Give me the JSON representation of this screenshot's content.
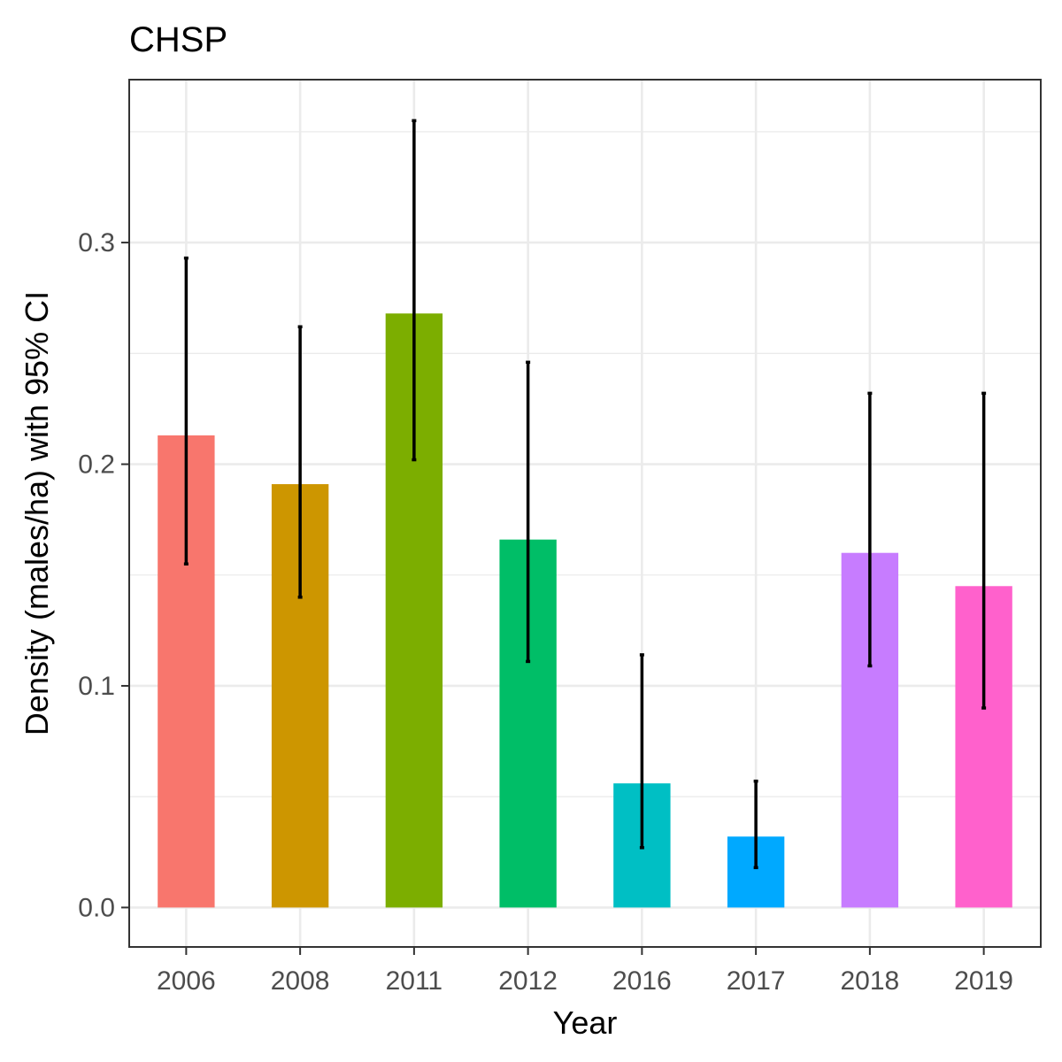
{
  "chart_data": {
    "type": "bar",
    "title": "CHSP",
    "xlabel": "Year",
    "ylabel": "Density (males/ha) with 95% CI",
    "categories": [
      "2006",
      "2008",
      "2011",
      "2012",
      "2016",
      "2017",
      "2018",
      "2019"
    ],
    "values": [
      0.213,
      0.191,
      0.268,
      0.166,
      0.056,
      0.032,
      0.16,
      0.145
    ],
    "ci_lower": [
      0.155,
      0.14,
      0.202,
      0.111,
      0.027,
      0.018,
      0.109,
      0.09
    ],
    "ci_upper": [
      0.293,
      0.262,
      0.355,
      0.246,
      0.114,
      0.057,
      0.232,
      0.232
    ],
    "colors": [
      "#F8766D",
      "#CD9600",
      "#7CAE00",
      "#00BE67",
      "#00BFC4",
      "#00A9FF",
      "#C77CFF",
      "#FF61CC"
    ],
    "yticks": [
      0.0,
      0.1,
      0.2,
      0.3
    ],
    "ytick_labels": [
      "0.0",
      "0.1",
      "0.2",
      "0.3"
    ],
    "ylim": [
      -0.0178,
      0.3735
    ],
    "grid": true,
    "legend": "none"
  }
}
